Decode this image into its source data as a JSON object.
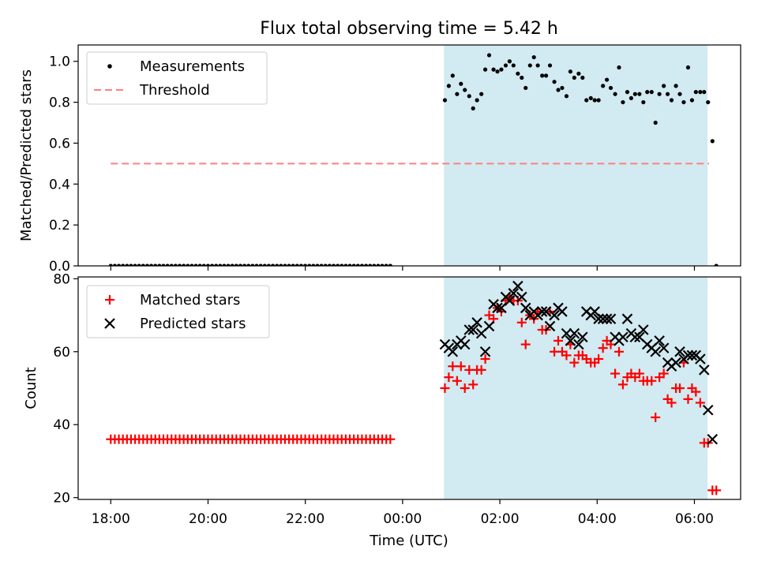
{
  "title": "Flux total observing time = 5.42 h",
  "colors": {
    "shade": "#add8e6",
    "measurement": "#000000",
    "threshold": "#ff7f7f",
    "matched": "#ff0000",
    "predicted": "#000000"
  },
  "chart_data": [
    {
      "type": "scatter",
      "ylabel": "Matched/Predicted stars",
      "ylim": [
        0,
        1.08
      ],
      "xlim_hours": [
        17.33,
        30.95
      ],
      "yticks": [
        "0.0",
        "0.2",
        "0.4",
        "0.6",
        "0.8",
        "1.0"
      ],
      "legend": [
        "Measurements",
        "Threshold"
      ],
      "legend_position": "top-left",
      "shaded_interval_hours": [
        24.85,
        30.27
      ],
      "threshold": {
        "value": 0.5,
        "x_range_hours": [
          18.0,
          30.3
        ],
        "style": "dashed"
      },
      "series": [
        {
          "name": "Measurements",
          "zero_run": {
            "from_hours": 18.0,
            "to_hours": 23.72,
            "step_hours": 0.0833,
            "value": 0
          },
          "points": [
            [
              24.87,
              0.81
            ],
            [
              24.95,
              0.88
            ],
            [
              25.03,
              0.93
            ],
            [
              25.12,
              0.84
            ],
            [
              25.2,
              0.89
            ],
            [
              25.28,
              0.86
            ],
            [
              25.37,
              0.83
            ],
            [
              25.45,
              0.77
            ],
            [
              25.53,
              0.81
            ],
            [
              25.62,
              0.84
            ],
            [
              25.7,
              0.96
            ],
            [
              25.78,
              1.03
            ],
            [
              25.87,
              0.96
            ],
            [
              25.95,
              0.95
            ],
            [
              26.03,
              0.96
            ],
            [
              26.12,
              0.98
            ],
            [
              26.2,
              1.0
            ],
            [
              26.28,
              0.98
            ],
            [
              26.37,
              0.94
            ],
            [
              26.45,
              0.92
            ],
            [
              26.53,
              0.87
            ],
            [
              26.62,
              0.98
            ],
            [
              26.7,
              1.02
            ],
            [
              26.78,
              0.98
            ],
            [
              26.87,
              0.93
            ],
            [
              26.95,
              0.93
            ],
            [
              27.03,
              0.98
            ],
            [
              27.12,
              0.9
            ],
            [
              27.2,
              0.86
            ],
            [
              27.28,
              0.87
            ],
            [
              27.37,
              0.83
            ],
            [
              27.45,
              0.95
            ],
            [
              27.53,
              0.92
            ],
            [
              27.62,
              0.94
            ],
            [
              27.7,
              0.92
            ],
            [
              27.78,
              0.81
            ],
            [
              27.87,
              0.82
            ],
            [
              27.95,
              0.81
            ],
            [
              28.03,
              0.81
            ],
            [
              28.12,
              0.88
            ],
            [
              28.2,
              0.91
            ],
            [
              28.28,
              0.87
            ],
            [
              28.37,
              0.84
            ],
            [
              28.45,
              0.97
            ],
            [
              28.53,
              0.8
            ],
            [
              28.62,
              0.85
            ],
            [
              28.7,
              0.82
            ],
            [
              28.78,
              0.84
            ],
            [
              28.87,
              0.84
            ],
            [
              28.95,
              0.8
            ],
            [
              29.03,
              0.85
            ],
            [
              29.12,
              0.85
            ],
            [
              29.2,
              0.7
            ],
            [
              29.28,
              0.84
            ],
            [
              29.37,
              0.88
            ],
            [
              29.45,
              0.84
            ],
            [
              29.53,
              0.81
            ],
            [
              29.62,
              0.88
            ],
            [
              29.7,
              0.84
            ],
            [
              29.78,
              0.8
            ],
            [
              29.87,
              0.97
            ],
            [
              29.95,
              0.81
            ],
            [
              30.03,
              0.85
            ],
            [
              30.12,
              0.85
            ],
            [
              30.2,
              0.85
            ],
            [
              30.28,
              0.8
            ],
            [
              30.37,
              0.61
            ],
            [
              30.45,
              0.0
            ]
          ]
        }
      ]
    },
    {
      "type": "scatter",
      "xlabel": "Time (UTC)",
      "ylabel": "Count",
      "ylim": [
        19.5,
        80.5
      ],
      "xlim_hours": [
        17.33,
        30.95
      ],
      "yticks": [
        "20",
        "40",
        "60",
        "80"
      ],
      "xticks": [
        {
          "hours": 18,
          "label": "18:00"
        },
        {
          "hours": 20,
          "label": "20:00"
        },
        {
          "hours": 22,
          "label": "22:00"
        },
        {
          "hours": 24,
          "label": "00:00"
        },
        {
          "hours": 26,
          "label": "02:00"
        },
        {
          "hours": 28,
          "label": "04:00"
        },
        {
          "hours": 30,
          "label": "06:00"
        }
      ],
      "legend": [
        "Matched stars",
        "Predicted stars"
      ],
      "legend_position": "top-left",
      "shaded_interval_hours": [
        24.85,
        30.27
      ],
      "series": [
        {
          "name": "Matched stars",
          "marker": "+",
          "constant_run": {
            "from_hours": 18.0,
            "to_hours": 23.72,
            "step_hours": 0.0833,
            "value": 36
          },
          "points": [
            [
              24.87,
              50
            ],
            [
              24.95,
              53
            ],
            [
              25.03,
              56
            ],
            [
              25.12,
              52
            ],
            [
              25.2,
              56
            ],
            [
              25.28,
              50
            ],
            [
              25.37,
              55
            ],
            [
              25.45,
              51
            ],
            [
              25.53,
              55
            ],
            [
              25.62,
              55
            ],
            [
              25.7,
              58
            ],
            [
              25.78,
              70
            ],
            [
              25.87,
              69
            ],
            [
              25.95,
              72
            ],
            [
              26.03,
              71
            ],
            [
              26.12,
              74
            ],
            [
              26.2,
              75
            ],
            [
              26.28,
              74
            ],
            [
              26.37,
              74
            ],
            [
              26.45,
              68
            ],
            [
              26.53,
              62
            ],
            [
              26.62,
              70
            ],
            [
              26.7,
              69
            ],
            [
              26.78,
              71
            ],
            [
              26.87,
              66
            ],
            [
              26.95,
              66
            ],
            [
              27.03,
              71
            ],
            [
              27.12,
              60
            ],
            [
              27.2,
              63
            ],
            [
              27.28,
              60
            ],
            [
              27.37,
              59
            ],
            [
              27.45,
              62
            ],
            [
              27.53,
              57
            ],
            [
              27.62,
              59
            ],
            [
              27.7,
              59
            ],
            [
              27.78,
              58
            ],
            [
              27.87,
              57
            ],
            [
              27.95,
              57
            ],
            [
              28.03,
              58
            ],
            [
              28.12,
              61
            ],
            [
              28.2,
              63
            ],
            [
              28.28,
              62
            ],
            [
              28.37,
              54
            ],
            [
              28.45,
              60
            ],
            [
              28.53,
              51
            ],
            [
              28.62,
              53
            ],
            [
              28.7,
              54
            ],
            [
              28.78,
              53
            ],
            [
              28.87,
              54
            ],
            [
              28.95,
              52
            ],
            [
              29.03,
              52
            ],
            [
              29.12,
              52
            ],
            [
              29.2,
              42
            ],
            [
              29.28,
              53
            ],
            [
              29.37,
              54
            ],
            [
              29.45,
              47
            ],
            [
              29.53,
              46
            ],
            [
              29.62,
              50
            ],
            [
              29.7,
              50
            ],
            [
              29.78,
              57
            ],
            [
              29.87,
              47
            ],
            [
              29.95,
              50
            ],
            [
              30.03,
              49
            ],
            [
              30.12,
              46
            ],
            [
              30.2,
              35
            ],
            [
              30.28,
              35
            ],
            [
              30.37,
              22
            ],
            [
              30.45,
              22
            ]
          ]
        },
        {
          "name": "Predicted stars",
          "marker": "x",
          "points": [
            [
              24.87,
              62
            ],
            [
              24.95,
              61
            ],
            [
              25.03,
              60
            ],
            [
              25.12,
              62
            ],
            [
              25.2,
              63
            ],
            [
              25.28,
              62
            ],
            [
              25.37,
              66
            ],
            [
              25.45,
              66
            ],
            [
              25.53,
              68
            ],
            [
              25.62,
              65
            ],
            [
              25.7,
              60
            ],
            [
              25.78,
              67
            ],
            [
              25.87,
              73
            ],
            [
              25.95,
              72
            ],
            [
              26.03,
              72
            ],
            [
              26.12,
              75
            ],
            [
              26.2,
              74
            ],
            [
              26.28,
              76
            ],
            [
              26.37,
              78
            ],
            [
              26.45,
              75
            ],
            [
              26.53,
              72
            ],
            [
              26.62,
              70
            ],
            [
              26.7,
              71
            ],
            [
              26.78,
              70
            ],
            [
              26.87,
              71
            ],
            [
              26.95,
              71
            ],
            [
              27.03,
              67
            ],
            [
              27.12,
              70
            ],
            [
              27.2,
              72
            ],
            [
              27.28,
              71
            ],
            [
              27.37,
              65
            ],
            [
              27.45,
              63
            ],
            [
              27.53,
              65
            ],
            [
              27.62,
              62
            ],
            [
              27.7,
              64
            ],
            [
              27.78,
              71
            ],
            [
              27.87,
              70
            ],
            [
              27.95,
              71
            ],
            [
              28.03,
              69
            ],
            [
              28.12,
              69
            ],
            [
              28.2,
              69
            ],
            [
              28.28,
              69
            ],
            [
              28.37,
              64
            ],
            [
              28.45,
              63
            ],
            [
              28.53,
              64
            ],
            [
              28.62,
              69
            ],
            [
              28.7,
              65
            ],
            [
              28.78,
              64
            ],
            [
              28.87,
              64
            ],
            [
              28.95,
              66
            ],
            [
              29.03,
              62
            ],
            [
              29.12,
              61
            ],
            [
              29.2,
              60
            ],
            [
              29.28,
              63
            ],
            [
              29.37,
              61
            ],
            [
              29.45,
              57
            ],
            [
              29.53,
              56
            ],
            [
              29.62,
              57
            ],
            [
              29.7,
              60
            ],
            [
              29.78,
              58
            ],
            [
              29.87,
              59
            ],
            [
              29.95,
              59
            ],
            [
              30.03,
              59
            ],
            [
              30.12,
              58
            ],
            [
              30.2,
              55
            ],
            [
              30.28,
              44
            ],
            [
              30.37,
              36
            ]
          ]
        }
      ]
    }
  ]
}
